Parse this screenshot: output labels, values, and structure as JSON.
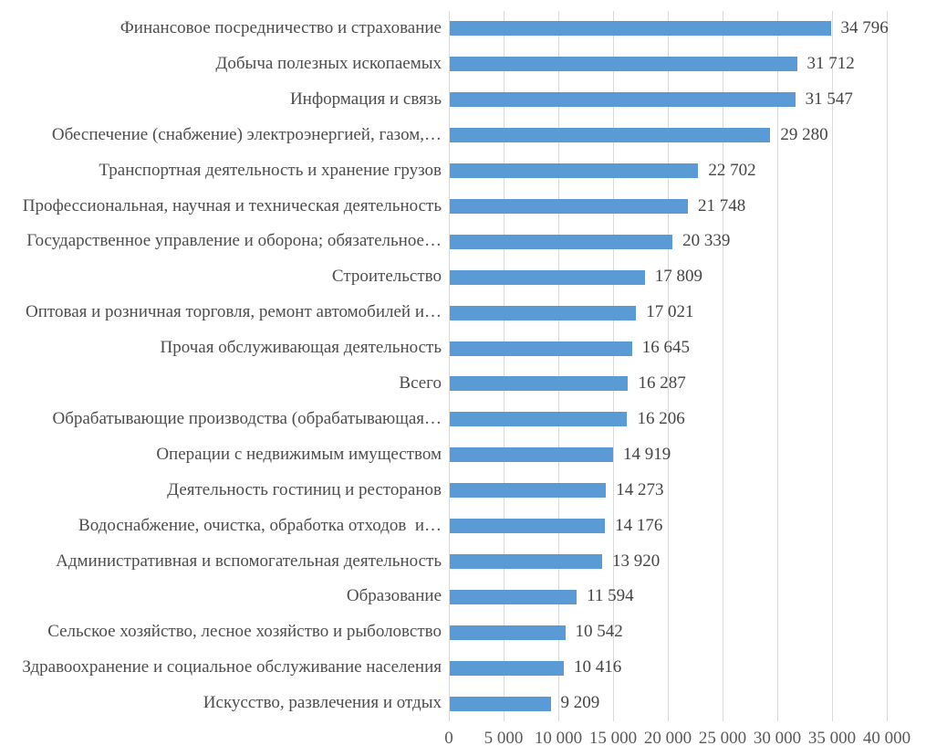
{
  "chart_data": {
    "type": "bar",
    "orientation": "horizontal",
    "title": "",
    "xlabel": "",
    "ylabel": "",
    "xlim": [
      0,
      40000
    ],
    "grid": true,
    "legend": "none",
    "bar_color": "#5b9bd5",
    "gridline_color": "#d9d9d9",
    "category_label_color": "#4d4d4d",
    "value_label_color": "#444444",
    "axis_tick_color": "#595959",
    "categories": [
      "Финансовое посредничество и страхование",
      "Добыча полезных ископаемых",
      "Информация и связь",
      "Обеспечение (снабжение) электроэнергией, газом,…",
      "Транспортная деятельность и хранение грузов",
      "Профессиональная, научная и техническая деятельность",
      "Государственное управление и оборона; обязательное…",
      "Строительство",
      "Оптовая и розничная торговля, ремонт автомобилей и…",
      "Прочая обслуживающая деятельность",
      "Всего",
      "Обрабатывающие производства (обрабатывающая…",
      "Операции с недвижимым имуществом",
      "Деятельность гостиниц и ресторанов",
      "Водоснабжение, очистка, обработка отходов  и…",
      "Административная и вспомогательная деятельность",
      "Образование",
      "Сельское хозяйство, лесное хозяйство и рыболовство",
      "Здравоохранение и социальное обслуживание населения",
      "Искусство, развлечения и отдых"
    ],
    "values": [
      34796,
      31712,
      31547,
      29280,
      22702,
      21748,
      20339,
      17809,
      17021,
      16645,
      16287,
      16206,
      14919,
      14273,
      14176,
      13920,
      11594,
      10542,
      10416,
      9209
    ],
    "value_labels": [
      "34 796",
      "31 712",
      "31 547",
      "29 280",
      "22 702",
      "21 748",
      "20 339",
      "17 809",
      "17 021",
      "16 645",
      "16 287",
      "16 206",
      "14 919",
      "14 273",
      "14 176",
      "13 920",
      "11 594",
      "10 542",
      "10 416",
      "9 209"
    ],
    "x_tick_values": [
      0,
      5000,
      10000,
      15000,
      20000,
      25000,
      30000,
      35000,
      40000
    ],
    "x_tick_labels": [
      "0",
      "5 000",
      "10 000",
      "15 000",
      "20 000",
      "25 000",
      "30 000",
      "35 000",
      "40 000"
    ]
  }
}
